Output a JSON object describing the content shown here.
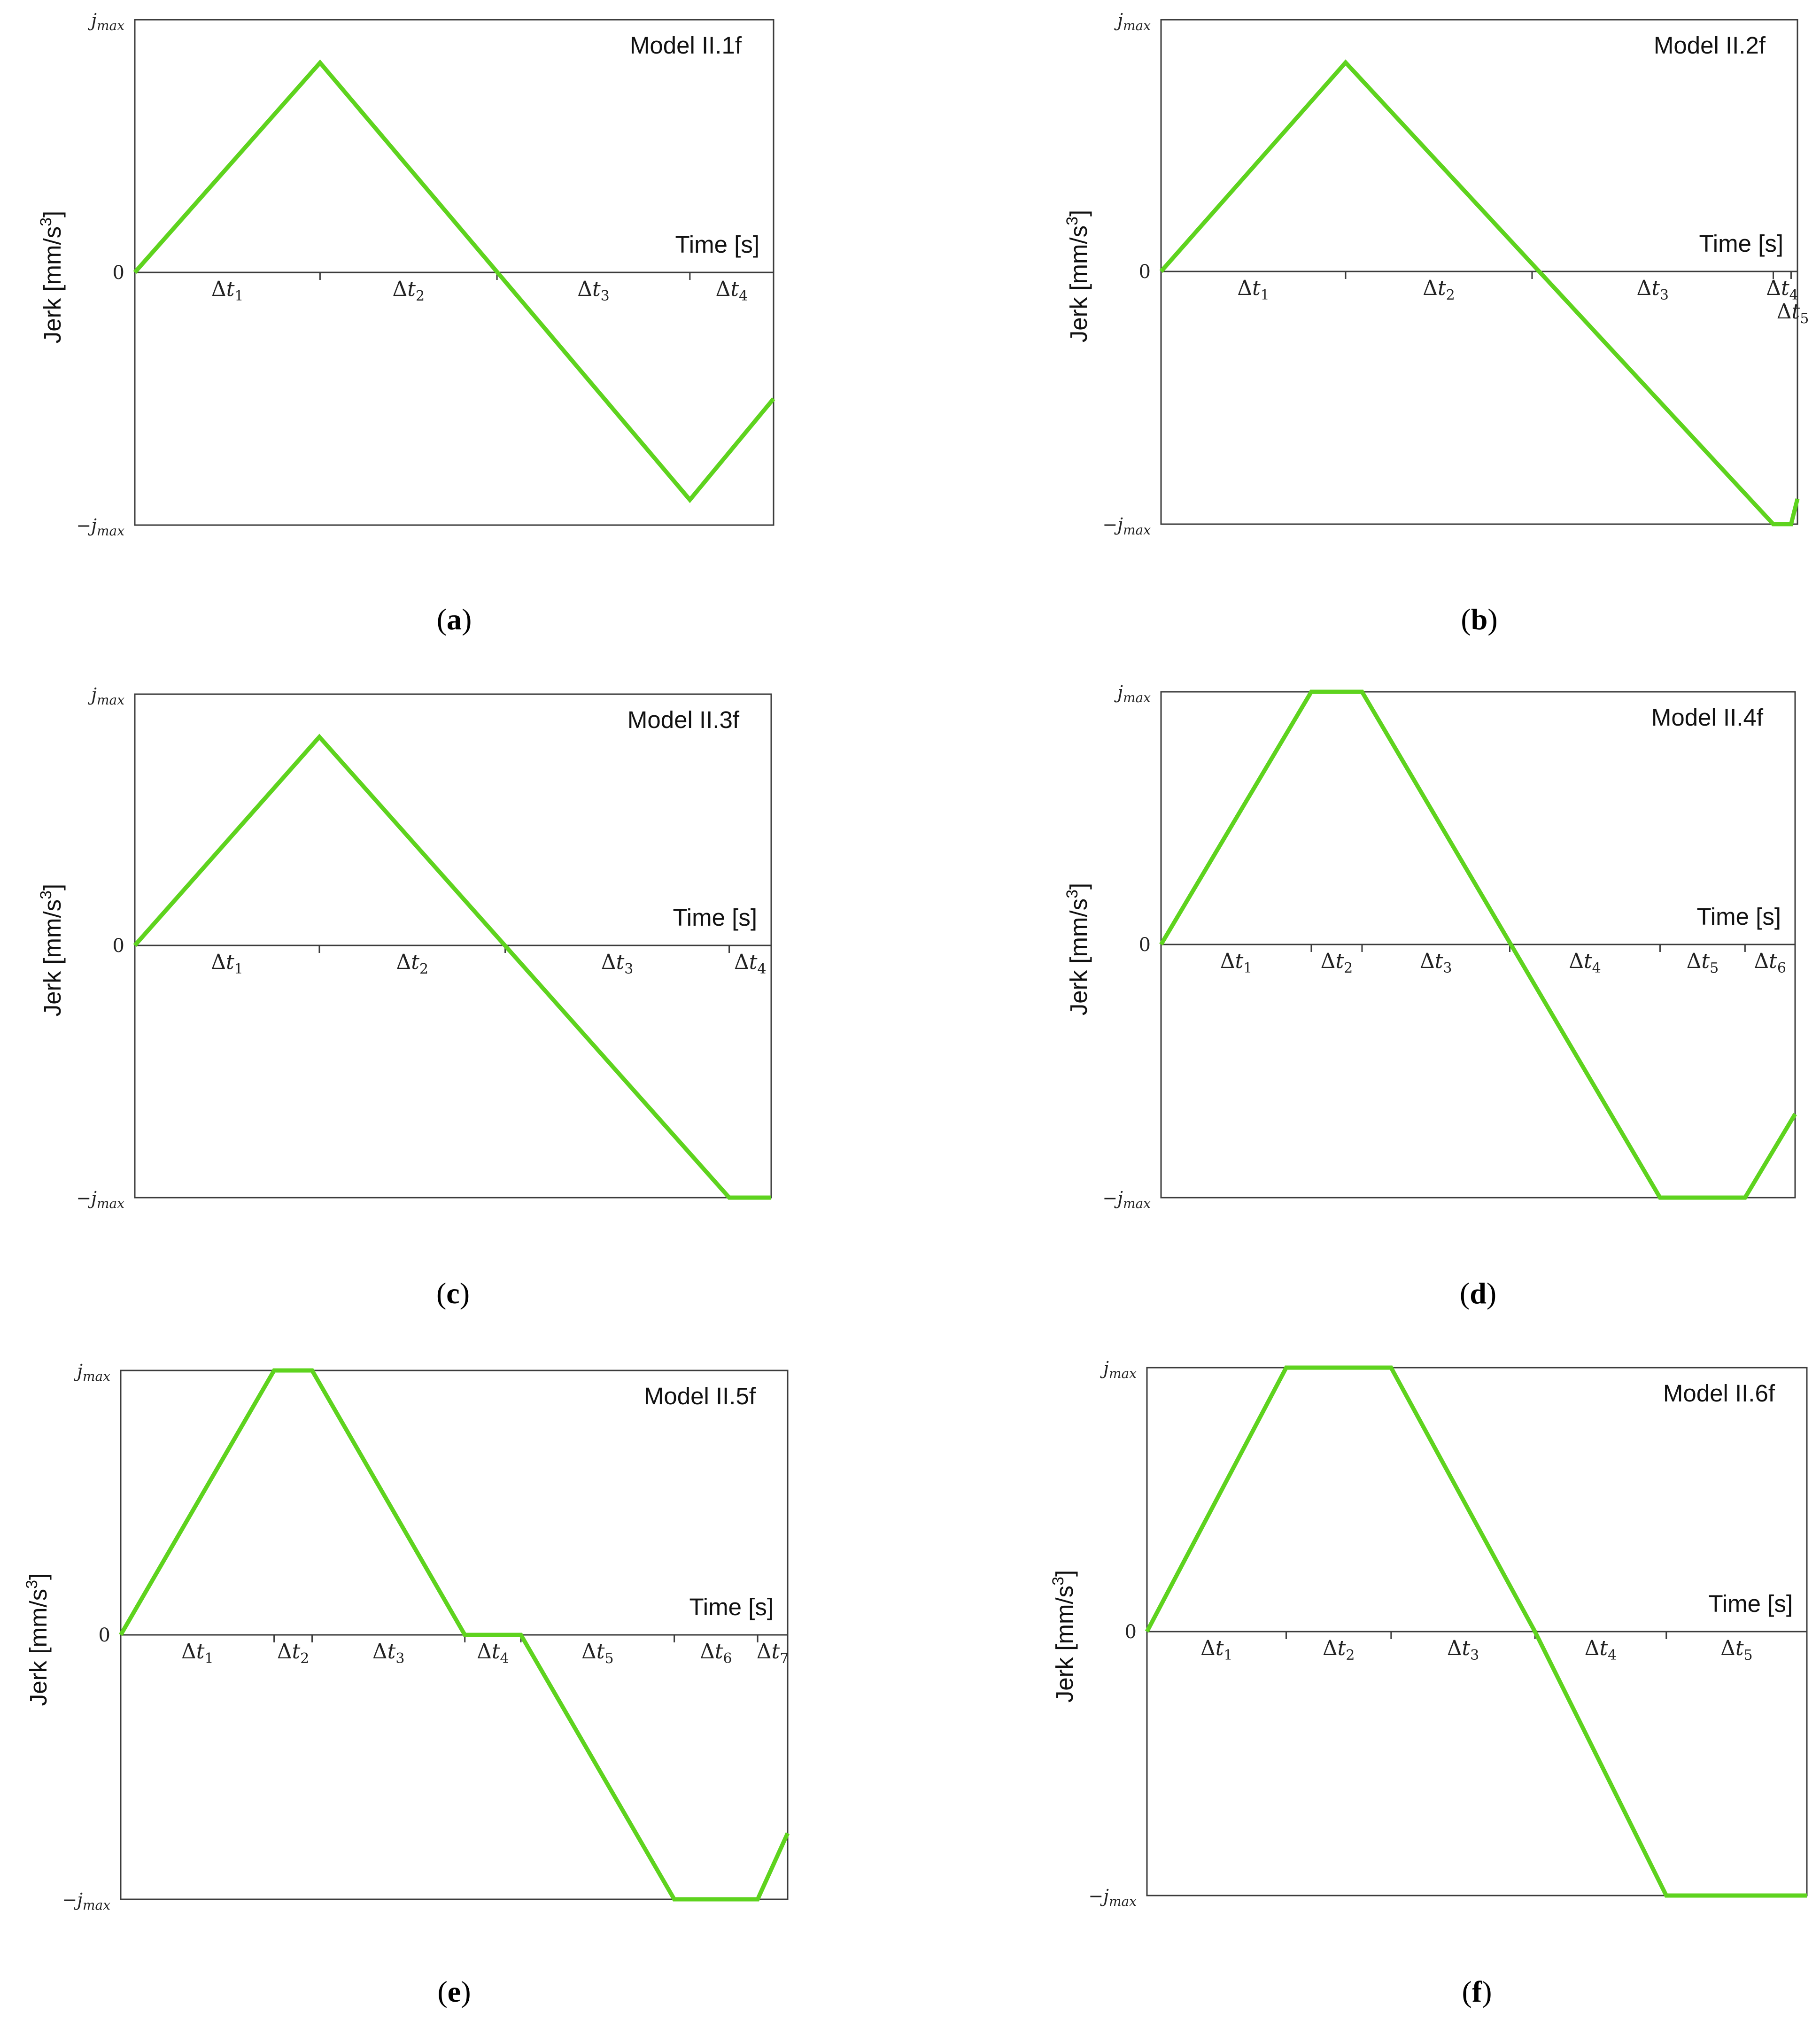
{
  "chart_data": [
    {
      "type": "line",
      "panel": "a",
      "title": "Model II.1f",
      "xlabel": "Time [s]",
      "ylabel": "Jerk [mm/s3]",
      "ylim": [
        -1,
        1
      ],
      "yticks": [
        {
          "value": 1,
          "label": "jmax"
        },
        {
          "value": 0,
          "label": "0"
        },
        {
          "value": -1,
          "label": "−jmax"
        }
      ],
      "xlim": [
        0,
        1
      ],
      "segment_boundaries": [
        0.29,
        0.567,
        0.869
      ],
      "segment_labels": [
        "Δt1",
        "Δt2",
        "Δt3",
        "Δt4"
      ],
      "series": [
        {
          "x": [
            0,
            0.29,
            0.869,
            1
          ],
          "y": [
            0,
            0.83,
            -0.9,
            -0.5
          ]
        }
      ]
    },
    {
      "type": "line",
      "panel": "b",
      "title": "Model II.2f",
      "xlabel": "Time [s]",
      "ylabel": "Jerk [mm/s3]",
      "ylim": [
        -1,
        1
      ],
      "yticks": [
        {
          "value": 1,
          "label": "jmax"
        },
        {
          "value": 0,
          "label": "0"
        },
        {
          "value": -1,
          "label": "−jmax"
        }
      ],
      "xlim": [
        0,
        1
      ],
      "segment_boundaries": [
        0.29,
        0.583,
        0.962,
        0.99
      ],
      "segment_labels": [
        "Δt1",
        "Δt2",
        "Δt3",
        "Δt4",
        "Δt5"
      ],
      "series": [
        {
          "x": [
            0,
            0.29,
            0.962,
            0.99,
            1
          ],
          "y": [
            0,
            0.83,
            -1,
            -1,
            -0.9
          ]
        }
      ]
    },
    {
      "type": "line",
      "panel": "c",
      "title": "Model II.3f",
      "xlabel": "Time [s]",
      "ylabel": "Jerk [mm/s3]",
      "ylim": [
        -1,
        1
      ],
      "yticks": [
        {
          "value": 1,
          "label": "jmax"
        },
        {
          "value": 0,
          "label": "0"
        },
        {
          "value": -1,
          "label": "−jmax"
        }
      ],
      "xlim": [
        0,
        1
      ],
      "segment_boundaries": [
        0.29,
        0.582,
        0.934
      ],
      "segment_labels": [
        "Δt1",
        "Δt2",
        "Δt3",
        "Δt4"
      ],
      "series": [
        {
          "x": [
            0,
            0.29,
            0.934,
            1
          ],
          "y": [
            0,
            0.83,
            -1,
            -1
          ]
        }
      ]
    },
    {
      "type": "line",
      "panel": "d",
      "title": "Model II.4f",
      "xlabel": "Time [s]",
      "ylabel": "Jerk [mm/s3]",
      "ylim": [
        -1,
        1
      ],
      "yticks": [
        {
          "value": 1,
          "label": "jmax"
        },
        {
          "value": 0,
          "label": "0"
        },
        {
          "value": -1,
          "label": "−jmax"
        }
      ],
      "xlim": [
        0,
        1
      ],
      "segment_boundaries": [
        0.237,
        0.317,
        0.55,
        0.787,
        0.921
      ],
      "segment_labels": [
        "Δt1",
        "Δt2",
        "Δt3",
        "Δt4",
        "Δt5",
        "Δt6"
      ],
      "series": [
        {
          "x": [
            0,
            0.237,
            0.317,
            0.787,
            0.921,
            1
          ],
          "y": [
            0,
            1,
            1,
            -1,
            -1,
            -0.67
          ]
        }
      ]
    },
    {
      "type": "line",
      "panel": "e",
      "title": "Model II.5f",
      "xlabel": "Time [s]",
      "ylabel": "Jerk [mm/s3]",
      "ylim": [
        -1,
        1
      ],
      "yticks": [
        {
          "value": 1,
          "label": "jmax"
        },
        {
          "value": 0,
          "label": "0"
        },
        {
          "value": -1,
          "label": "−jmax"
        }
      ],
      "xlim": [
        0,
        1
      ],
      "segment_boundaries": [
        0.23,
        0.287,
        0.516,
        0.6,
        0.83,
        0.955
      ],
      "segment_labels": [
        "Δt1",
        "Δt2",
        "Δt3",
        "Δt4",
        "Δt5",
        "Δt6",
        "Δt7"
      ],
      "series": [
        {
          "x": [
            0,
            0.23,
            0.287,
            0.516,
            0.6,
            0.83,
            0.955,
            1
          ],
          "y": [
            0,
            1,
            1,
            0,
            0,
            -1,
            -1,
            -0.75
          ]
        }
      ]
    },
    {
      "type": "line",
      "panel": "f",
      "title": "Model II.6f",
      "xlabel": "Time [s]",
      "ylabel": "Jerk [mm/s3]",
      "ylim": [
        -1,
        1
      ],
      "yticks": [
        {
          "value": 1,
          "label": "jmax"
        },
        {
          "value": 0,
          "label": "0"
        },
        {
          "value": -1,
          "label": "−jmax"
        }
      ],
      "xlim": [
        0,
        1
      ],
      "segment_boundaries": [
        0.211,
        0.37,
        0.588,
        0.787
      ],
      "segment_labels": [
        "Δt1",
        "Δt2",
        "Δt3",
        "Δt4",
        "Δt5"
      ],
      "series": [
        {
          "x": [
            0,
            0.211,
            0.37,
            0.588,
            0.787,
            1
          ],
          "y": [
            0,
            1,
            1,
            0,
            -1,
            -1
          ]
        }
      ]
    }
  ],
  "style": {
    "trace_color": "#5ed31e",
    "frame_color": "#3c3c3c"
  }
}
